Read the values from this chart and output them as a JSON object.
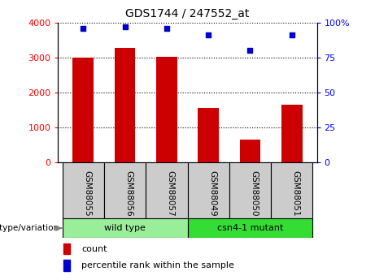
{
  "title": "GDS1744 / 247552_at",
  "categories": [
    "GSM88055",
    "GSM88056",
    "GSM88057",
    "GSM88049",
    "GSM88050",
    "GSM88051"
  ],
  "counts": [
    3000,
    3270,
    3020,
    1560,
    650,
    1660
  ],
  "percentile_ranks": [
    96,
    97,
    96,
    91,
    80,
    91
  ],
  "groups": [
    {
      "label": "wild type",
      "span": [
        0,
        3
      ],
      "color": "#99EE99"
    },
    {
      "label": "csn4-1 mutant",
      "span": [
        3,
        6
      ],
      "color": "#33DD33"
    }
  ],
  "bar_color": "#CC0000",
  "scatter_color": "#0000CC",
  "yticks_left": [
    0,
    1000,
    2000,
    3000,
    4000
  ],
  "yticks_right": [
    0,
    25,
    50,
    75,
    100
  ],
  "legend_count_label": "count",
  "legend_pct_label": "percentile rank within the sample",
  "group_label": "genotype/variation",
  "sample_box_color": "#CCCCCC",
  "bar_width": 0.5
}
